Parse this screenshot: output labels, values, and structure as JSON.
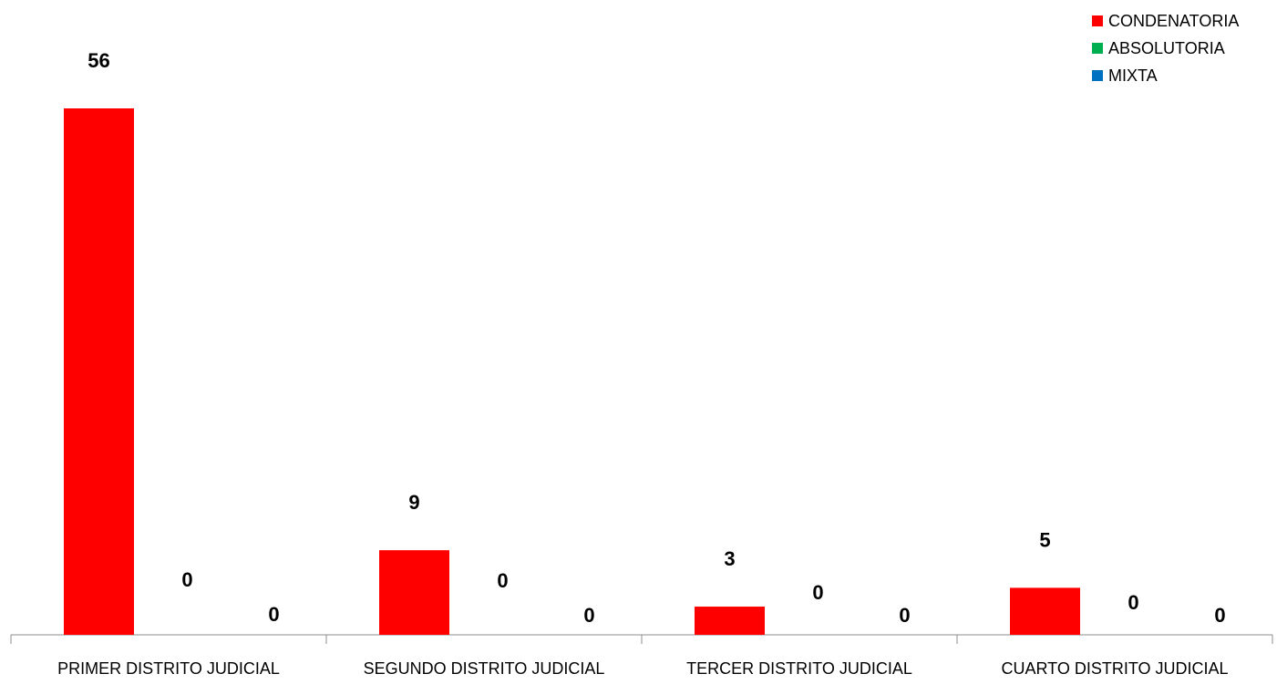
{
  "chart_data": {
    "type": "bar",
    "categories": [
      "PRIMER DISTRITO JUDICIAL",
      "SEGUNDO DISTRITO JUDICIAL",
      "TERCER DISTRITO JUDICIAL",
      "CUARTO DISTRITO JUDICIAL"
    ],
    "series": [
      {
        "name": "CONDENATORIA",
        "color": "#ff0000",
        "values": [
          56,
          9,
          3,
          5
        ]
      },
      {
        "name": "ABSOLUTORIA",
        "color": "#00b050",
        "values": [
          0,
          0,
          0,
          0
        ]
      },
      {
        "name": "MIXTA",
        "color": "#0070c0",
        "values": [
          0,
          0,
          0,
          0
        ]
      }
    ],
    "title": "",
    "xlabel": "",
    "ylabel": "",
    "ylim": [
      0,
      60
    ],
    "grid": false,
    "legend_position": "top-right"
  }
}
